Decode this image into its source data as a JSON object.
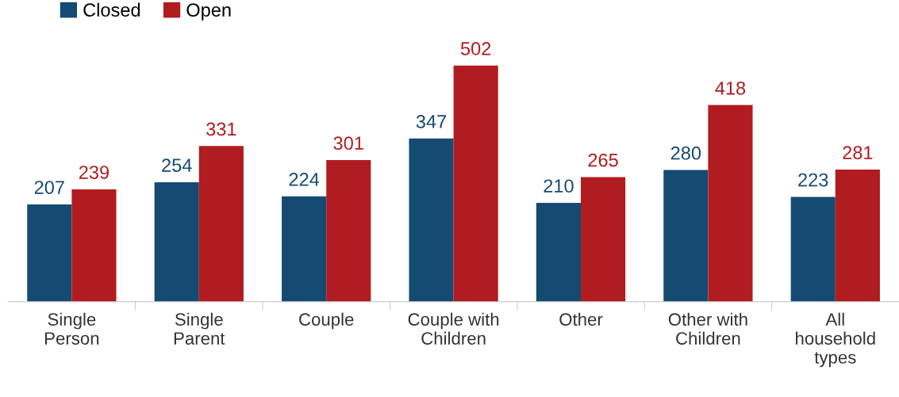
{
  "chart_data": {
    "type": "bar",
    "categories": [
      "Single\nPerson",
      "Single\nParent",
      "Couple",
      "Couple with\nChildren",
      "Other",
      "Other with\nChildren",
      "All\nhousehold\ntypes"
    ],
    "series": [
      {
        "name": "Closed",
        "color": "#154a72",
        "values": [
          207,
          254,
          224,
          347,
          210,
          280,
          223
        ]
      },
      {
        "name": "Open",
        "color": "#b01c1f",
        "values": [
          239,
          331,
          301,
          502,
          265,
          418,
          281
        ]
      }
    ],
    "data_labels": true,
    "legend": "top left",
    "grid": false
  }
}
